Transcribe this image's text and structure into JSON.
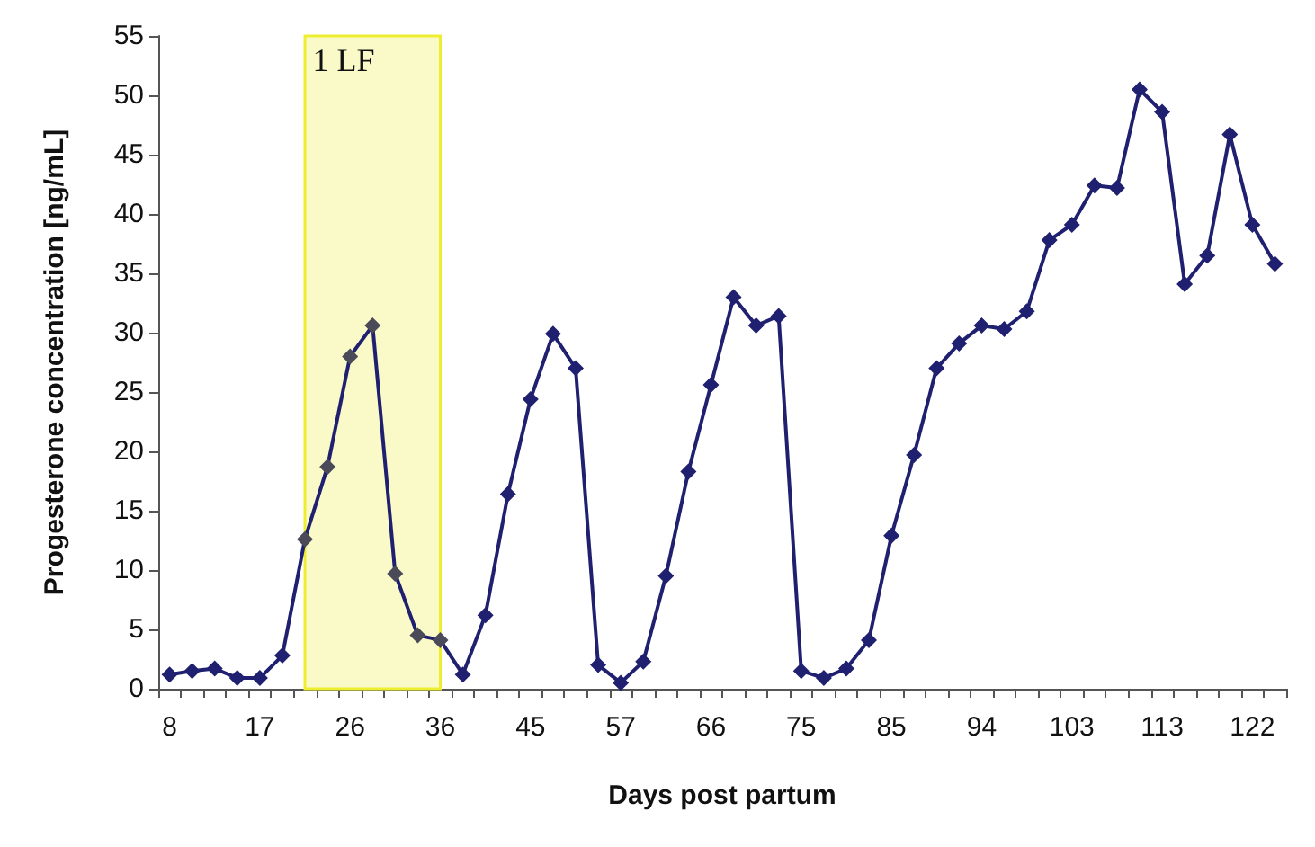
{
  "chart_data": {
    "type": "line",
    "xlabel": "Days post partum",
    "ylabel": "Progesterone concentration [ng/mL]",
    "categories": [
      "8",
      null,
      null,
      null,
      "17",
      null,
      null,
      null,
      "26",
      null,
      null,
      null,
      "36",
      null,
      null,
      null,
      "45",
      null,
      null,
      null,
      "57",
      null,
      null,
      null,
      "66",
      null,
      null,
      null,
      "75",
      null,
      null,
      null,
      "85",
      null,
      null,
      null,
      "94",
      null,
      null,
      null,
      "103",
      null,
      null,
      null,
      "113",
      null,
      null,
      null,
      "122",
      null
    ],
    "series": [
      {
        "color": "#202070",
        "colors": [
          "#202070",
          "#202070",
          "#202070",
          "#202070",
          "#202070",
          "#202070",
          "#4a4a58",
          "#4a4a58",
          "#4a4a58",
          "#4a4a58",
          "#4a4a58",
          "#4a4a58",
          "#4a4a58",
          "#202070",
          "#202070",
          "#202070",
          "#202070",
          "#202070",
          "#202070",
          "#202070",
          "#202070",
          "#202070",
          "#202070",
          "#202070",
          "#202070",
          "#202070",
          "#202070",
          "#202070",
          "#202070",
          "#202070",
          "#202070",
          "#202070",
          "#202070",
          "#202070",
          "#202070",
          "#202070",
          "#202070",
          "#202070",
          "#202070",
          "#202070",
          "#202070",
          "#202070",
          "#202070",
          "#202070",
          "#202070",
          "#202070",
          "#202070",
          "#202070",
          "#202070",
          "#202070"
        ],
        "values": [
          1.2,
          1.5,
          1.7,
          0.9,
          0.9,
          2.8,
          12.6,
          18.7,
          28,
          30.6,
          9.7,
          4.5,
          4.1,
          1.2,
          6.2,
          16.4,
          24.4,
          29.9,
          27,
          2,
          0.5,
          2.3,
          9.5,
          18.3,
          25.6,
          33,
          30.6,
          31.4,
          1.5,
          0.9,
          1.7,
          4.1,
          12.9,
          19.7,
          27,
          29.1,
          30.6,
          30.3,
          31.8,
          37.8,
          39.1,
          42.4,
          42.2,
          50.5,
          48.6,
          34.1,
          36.5,
          46.7,
          39.1,
          35.8
        ]
      }
    ],
    "ylim": [
      0,
      55
    ],
    "yticks": [
      0,
      5,
      10,
      15,
      20,
      25,
      30,
      35,
      40,
      45,
      50,
      55
    ],
    "annotations": [
      "1 LF"
    ],
    "marker": "diamond",
    "line_style": "solid",
    "grid": false
  }
}
